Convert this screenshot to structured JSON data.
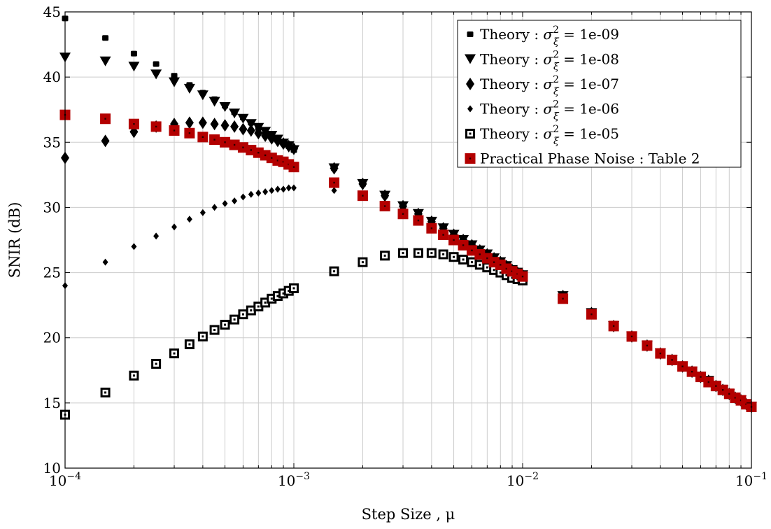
{
  "chart_data": {
    "type": "scatter",
    "xlabel": "Step Size , μ",
    "ylabel": "SNIR (dB)",
    "xscale": "log",
    "xlim": [
      0.0001,
      0.1
    ],
    "ylim": [
      10,
      45
    ],
    "yticks": [
      10,
      15,
      20,
      25,
      30,
      35,
      40,
      45
    ],
    "xtick_labels": [
      {
        "value": 0.0001,
        "base": "10",
        "exp": "−4"
      },
      {
        "value": 0.001,
        "base": "10",
        "exp": "−3"
      },
      {
        "value": 0.01,
        "base": "10",
        "exp": "−2"
      },
      {
        "value": 0.1,
        "base": "10",
        "exp": "−1"
      }
    ],
    "grid": true,
    "legend_position": "top-right",
    "x": [
      0.0001,
      0.00015,
      0.0002,
      0.00025,
      0.0003,
      0.00035,
      0.0004,
      0.00045,
      0.0005,
      0.00055,
      0.0006,
      0.00065,
      0.0007,
      0.00075,
      0.0008,
      0.00085,
      0.0009,
      0.00095,
      0.001,
      0.0015,
      0.002,
      0.0025,
      0.003,
      0.0035,
      0.004,
      0.0045,
      0.005,
      0.0055,
      0.006,
      0.0065,
      0.007,
      0.0075,
      0.008,
      0.0085,
      0.009,
      0.0095,
      0.01,
      0.015,
      0.02,
      0.025,
      0.03,
      0.035,
      0.04,
      0.045,
      0.05,
      0.055,
      0.06,
      0.065,
      0.07,
      0.075,
      0.08,
      0.085,
      0.09,
      0.095,
      0.1
    ],
    "series": [
      {
        "name": "Theory : σ²_ξ = 1e-09",
        "label_prefix": "Theory : ",
        "sigma": "σ",
        "sup": "2",
        "sub": "ξ",
        "label_suffix": " = 1e-09",
        "marker": "square-small",
        "color": "#000000",
        "values": [
          44.5,
          43.0,
          41.8,
          41.0,
          40.1,
          39.4,
          38.8,
          38.3,
          37.8,
          37.3,
          36.9,
          36.5,
          36.1,
          35.8,
          35.5,
          35.2,
          34.9,
          34.7,
          34.4,
          33.0,
          31.8,
          30.9,
          30.1,
          29.5,
          28.9,
          28.4,
          27.9,
          27.5,
          27.1,
          26.7,
          26.4,
          26.1,
          25.8,
          25.5,
          25.2,
          25.0,
          24.8,
          23.2,
          21.9,
          20.9,
          20.1,
          19.4,
          18.8,
          18.3,
          17.8,
          17.4,
          17.0,
          16.7,
          16.3,
          16.0,
          15.7,
          15.4,
          15.2,
          14.9,
          14.7
        ]
      },
      {
        "name": "Theory : σ²_ξ = 1e-08",
        "label_prefix": "Theory : ",
        "sigma": "σ",
        "sup": "2",
        "sub": "ξ",
        "label_suffix": " = 1e-08",
        "marker": "triangle-down",
        "color": "#000000",
        "values": [
          41.5,
          41.2,
          40.8,
          40.2,
          39.6,
          39.1,
          38.6,
          38.1,
          37.7,
          37.2,
          36.8,
          36.4,
          36.1,
          35.8,
          35.5,
          35.2,
          34.9,
          34.7,
          34.4,
          33.0,
          31.8,
          30.9,
          30.1,
          29.5,
          28.9,
          28.4,
          27.9,
          27.5,
          27.1,
          26.7,
          26.4,
          26.1,
          25.8,
          25.5,
          25.2,
          25.0,
          24.8,
          23.2,
          21.9,
          20.9,
          20.1,
          19.4,
          18.8,
          18.3,
          17.8,
          17.4,
          17.0,
          16.7,
          16.3,
          16.0,
          15.7,
          15.4,
          15.2,
          14.9,
          14.7
        ]
      },
      {
        "name": "Theory : σ²_ξ = 1e-07",
        "label_prefix": "Theory : ",
        "sigma": "σ",
        "sup": "2",
        "sub": "ξ",
        "label_suffix": " = 1e-07",
        "marker": "diamond",
        "color": "#000000",
        "values": [
          33.8,
          35.1,
          35.8,
          36.2,
          36.4,
          36.5,
          36.5,
          36.4,
          36.3,
          36.2,
          36.0,
          35.9,
          35.7,
          35.5,
          35.3,
          35.1,
          34.9,
          34.7,
          34.5,
          33.0,
          31.8,
          30.9,
          30.1,
          29.5,
          28.9,
          28.4,
          27.9,
          27.5,
          27.1,
          26.7,
          26.4,
          26.1,
          25.8,
          25.5,
          25.2,
          25.0,
          24.8,
          23.2,
          21.9,
          20.9,
          20.1,
          19.4,
          18.8,
          18.3,
          17.8,
          17.4,
          17.0,
          16.7,
          16.3,
          16.0,
          15.7,
          15.4,
          15.2,
          14.9,
          14.7
        ]
      },
      {
        "name": "Theory : σ²_ξ = 1e-06",
        "label_prefix": "Theory : ",
        "sigma": "σ",
        "sup": "2",
        "sub": "ξ",
        "label_suffix": " = 1e-06",
        "marker": "diamond-small",
        "color": "#000000",
        "values": [
          24.0,
          25.8,
          27.0,
          27.8,
          28.5,
          29.1,
          29.6,
          30.0,
          30.3,
          30.5,
          30.8,
          31.0,
          31.1,
          31.2,
          31.3,
          31.4,
          31.4,
          31.5,
          31.5,
          31.3,
          30.9,
          30.3,
          29.8,
          29.3,
          28.8,
          28.3,
          27.9,
          27.5,
          27.1,
          26.7,
          26.4,
          26.1,
          25.8,
          25.5,
          25.2,
          25.0,
          24.7,
          23.1,
          21.9,
          20.9,
          20.1,
          19.4,
          18.8,
          18.3,
          17.8,
          17.4,
          17.0,
          16.7,
          16.3,
          16.0,
          15.7,
          15.4,
          15.2,
          14.9,
          14.7
        ]
      },
      {
        "name": "Theory : σ²_ξ = 1e-05",
        "label_prefix": "Theory : ",
        "sigma": "σ",
        "sup": "2",
        "sub": "ξ",
        "label_suffix": " = 1e-05",
        "marker": "square-dot",
        "color": "#000000",
        "values": [
          14.1,
          15.8,
          17.1,
          18.0,
          18.8,
          19.5,
          20.1,
          20.6,
          21.0,
          21.4,
          21.8,
          22.1,
          22.4,
          22.7,
          23.0,
          23.2,
          23.4,
          23.6,
          23.8,
          25.1,
          25.8,
          26.3,
          26.5,
          26.5,
          26.5,
          26.4,
          26.2,
          26.0,
          25.8,
          25.6,
          25.4,
          25.2,
          25.0,
          24.8,
          24.6,
          24.5,
          24.4,
          23.0,
          21.8,
          20.9,
          20.1,
          19.4,
          18.8,
          18.3,
          17.8,
          17.4,
          17.0,
          16.6,
          16.3,
          16.0,
          15.7,
          15.4,
          15.2,
          14.9,
          14.7
        ]
      },
      {
        "name": "Practical Phase Noise : Table 2",
        "label_prefix": "Practical Phase Noise : Table 2",
        "marker": "square-red",
        "color": "#b30000",
        "values": [
          37.1,
          36.8,
          36.4,
          36.2,
          35.9,
          35.7,
          35.4,
          35.2,
          35.0,
          34.8,
          34.6,
          34.4,
          34.2,
          34.0,
          33.8,
          33.6,
          33.5,
          33.3,
          33.1,
          31.9,
          30.9,
          30.1,
          29.5,
          29.0,
          28.4,
          27.9,
          27.5,
          27.1,
          26.7,
          26.4,
          26.1,
          25.8,
          25.6,
          25.3,
          25.1,
          24.9,
          24.7,
          23.0,
          21.8,
          20.9,
          20.1,
          19.4,
          18.8,
          18.3,
          17.8,
          17.4,
          17.0,
          16.6,
          16.3,
          16.0,
          15.7,
          15.4,
          15.2,
          14.9,
          14.7
        ]
      }
    ]
  }
}
